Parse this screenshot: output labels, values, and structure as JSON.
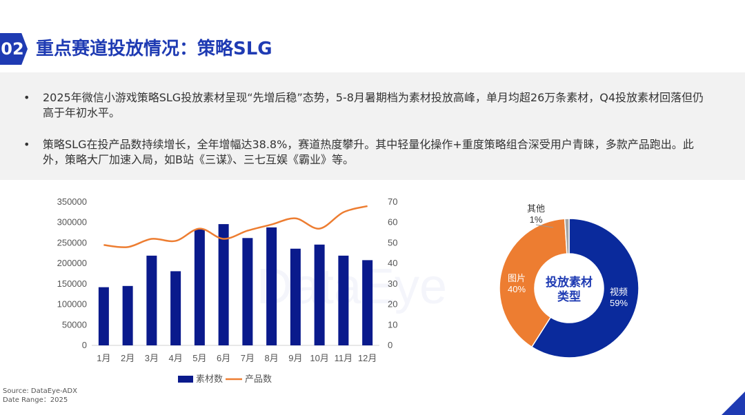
{
  "header": {
    "number": "02",
    "title": "重点赛道投放情况：策略SLG"
  },
  "summary": {
    "bullet_symbol": "•",
    "points": [
      "2025年微信小游戏策略SLG投放素材呈现“先增后稳”态势，5-8月暑期档为素材投放高峰，单月均超26万条素材，Q4投放素材回落但仍高于年初水平。",
      "策略SLG在投产品数持续增长，全年增幅达38.8%，赛道热度攀升。其中轻量化操作+重度策略组合深受用户青睐，多款产品跑出。此外，策略大厂加速入局，如B站《三谋》、三七互娱《霸业》等。"
    ]
  },
  "watermark": "DataEye",
  "chart_data": [
    {
      "type": "bar",
      "categories": [
        "1月",
        "2月",
        "3月",
        "4月",
        "5月",
        "6月",
        "7月",
        "8月",
        "9月",
        "10月",
        "11月",
        "12月"
      ],
      "series": [
        {
          "name": "素材数",
          "type": "bar",
          "axis": "left",
          "color": "#0a1a8c",
          "values": [
            142000,
            145000,
            219000,
            181000,
            283000,
            296000,
            262000,
            288000,
            236000,
            246000,
            219000,
            208000
          ]
        },
        {
          "name": "产品数",
          "type": "line",
          "axis": "right",
          "color": "#ed7d31",
          "values": [
            49,
            48,
            52,
            51,
            57,
            52,
            56,
            59,
            62,
            57,
            65,
            68
          ]
        }
      ],
      "y_left": {
        "ticks": [
          "350000",
          "300000",
          "250000",
          "200000",
          "150000",
          "100000",
          "50000",
          "0"
        ],
        "ylim": [
          0,
          350000
        ]
      },
      "y_right": {
        "ticks": [
          "70",
          "60",
          "50",
          "40",
          "30",
          "20",
          "10",
          "0"
        ],
        "ylim": [
          0,
          70
        ]
      },
      "legend": {
        "position": "bottom",
        "items": [
          "素材数",
          "产品数"
        ]
      },
      "grid": false
    },
    {
      "type": "pie",
      "center_label": [
        "投放素材",
        "类型"
      ],
      "slices": [
        {
          "label": "视频",
          "value": 59,
          "pct_label": "59%",
          "color": "#0a2a9c"
        },
        {
          "label": "图片",
          "value": 40,
          "pct_label": "40%",
          "color": "#ed7d31"
        },
        {
          "label": "其他",
          "value": 1,
          "pct_label": "1%",
          "color": "#a5a5a5"
        }
      ]
    }
  ],
  "footer": {
    "source": "Source: DataEye-ADX",
    "date_range": "Date Range：2025"
  },
  "colors": {
    "brand": "#1f3bb3",
    "bar": "#0a1a8c",
    "line": "#ed7d31",
    "panel": "#f2f2f2"
  }
}
